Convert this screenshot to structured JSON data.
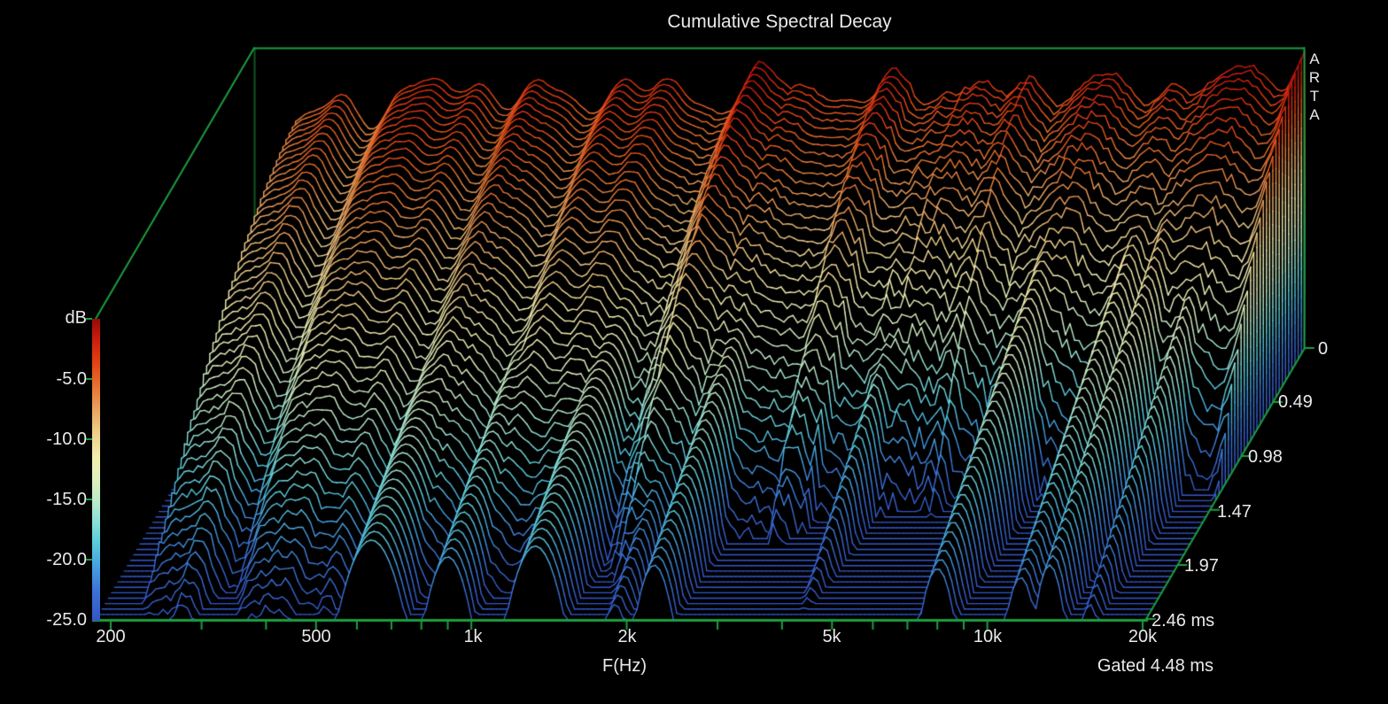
{
  "title": "Cumulative Spectral Decay",
  "watermark_letters": [
    "A",
    "R",
    "T",
    "A"
  ],
  "footer_note": "Gated 4.48 ms",
  "colors": {
    "background": "#000000",
    "plot_fill": "#000000",
    "axis_green": "#1c9e3e",
    "axis_green_dim": "#0d5a23",
    "text": "#e9e9e9"
  },
  "axes": {
    "x": {
      "label": "F(Hz)",
      "scale": "log",
      "major_ticks": [
        "200",
        "500",
        "1k",
        "2k",
        "5k",
        "10k",
        "20k"
      ],
      "major_tick_hz": [
        200,
        500,
        1000,
        2000,
        5000,
        10000,
        20000
      ],
      "minor_tick_hz": [
        300,
        400,
        600,
        700,
        800,
        900,
        3000,
        4000,
        6000,
        7000,
        8000,
        9000
      ],
      "view_range_hz": [
        187,
        20300
      ]
    },
    "y": {
      "label": "dB",
      "tick_labels": [
        "dB",
        "-5.0",
        "-10.0",
        "-15.0",
        "-20.0",
        "-25.0"
      ],
      "range_db": [
        -25,
        0
      ]
    },
    "z": {
      "tick_labels": [
        "0",
        "0.49",
        "0.98",
        "1.47",
        "1.97",
        "2.46 ms"
      ],
      "tick_ms": [
        0,
        0.49,
        0.98,
        1.47,
        1.97,
        2.46
      ],
      "max_ms": 2.46
    }
  },
  "chart_data": {
    "type": "waterfall",
    "subtype": "cumulative-spectral-decay",
    "time_slices": 51,
    "time_max_ms": 2.46,
    "gate_ms": 4.48,
    "valid_freq_min_hz": 223,
    "db_floor": -25,
    "initial_response_db": [
      [
        223,
        -6.3
      ],
      [
        250,
        -5.6
      ],
      [
        300,
        -4.9
      ],
      [
        400,
        -3.6
      ],
      [
        500,
        -3.1
      ],
      [
        600,
        -3.7
      ],
      [
        700,
        -4.5
      ],
      [
        800,
        -4.2
      ],
      [
        900,
        -3.5
      ],
      [
        1000,
        -3.1
      ],
      [
        1150,
        -3.6
      ],
      [
        1300,
        -4.4
      ],
      [
        1500,
        -4.0
      ],
      [
        1700,
        -3.2
      ],
      [
        2000,
        -2.9
      ],
      [
        2400,
        -3.5
      ],
      [
        2800,
        -4.1
      ],
      [
        3300,
        -3.7
      ],
      [
        3900,
        -3.0
      ],
      [
        4500,
        -3.4
      ],
      [
        5200,
        -4.0
      ],
      [
        6000,
        -3.4
      ],
      [
        7000,
        -2.9
      ],
      [
        8000,
        -3.2
      ],
      [
        9000,
        -3.9
      ],
      [
        10500,
        -3.5
      ],
      [
        12000,
        -2.9
      ],
      [
        13500,
        -3.3
      ],
      [
        15000,
        -2.6
      ],
      [
        17000,
        -2.0
      ],
      [
        19000,
        -1.4
      ],
      [
        20300,
        -1.0
      ]
    ],
    "decay_rate_db": [
      [
        223,
        4.4
      ],
      [
        500,
        4.9
      ],
      [
        1000,
        5.4
      ],
      [
        2000,
        6.8
      ],
      [
        3200,
        8.6
      ],
      [
        5000,
        11.0
      ],
      [
        8000,
        12.5
      ],
      [
        12000,
        13.5
      ],
      [
        20300,
        14.5
      ]
    ],
    "decay_time_exponent": 1.7,
    "resonances": [
      {
        "hz": 640,
        "level_db": -4.6,
        "decay_db_per_ms": 5.6,
        "logwidth": 0.045
      },
      {
        "hz": 900,
        "level_db": -5.0,
        "decay_db_per_ms": 6.0,
        "logwidth": 0.035
      },
      {
        "hz": 1330,
        "level_db": -4.6,
        "decay_db_per_ms": 5.8,
        "logwidth": 0.04
      },
      {
        "hz": 1900,
        "level_db": -6.5,
        "decay_db_per_ms": 7.0,
        "logwidth": 0.025
      },
      {
        "hz": 2260,
        "level_db": -5.2,
        "decay_db_per_ms": 6.2,
        "logwidth": 0.03
      },
      {
        "hz": 4300,
        "level_db": -6.0,
        "decay_db_per_ms": 8.0,
        "logwidth": 0.022
      },
      {
        "hz": 8000,
        "level_db": -4.5,
        "decay_db_per_ms": 6.6,
        "logwidth": 0.028
      },
      {
        "hz": 11600,
        "level_db": -4.5,
        "decay_db_per_ms": 6.9,
        "logwidth": 0.026
      },
      {
        "hz": 13200,
        "level_db": -4.2,
        "decay_db_per_ms": 6.6,
        "logwidth": 0.024
      },
      {
        "hz": 15800,
        "level_db": -5.0,
        "decay_db_per_ms": 7.6,
        "logwidth": 0.02
      }
    ],
    "colormap_level_to_rgb": [
      [
        0.0,
        52,
        86,
        198
      ],
      [
        0.1,
        60,
        115,
        215
      ],
      [
        0.18,
        70,
        160,
        225
      ],
      [
        0.26,
        90,
        205,
        220
      ],
      [
        0.33,
        140,
        225,
        215
      ],
      [
        0.4,
        190,
        235,
        200
      ],
      [
        0.47,
        225,
        240,
        190
      ],
      [
        0.54,
        242,
        238,
        175
      ],
      [
        0.62,
        240,
        208,
        140
      ],
      [
        0.7,
        233,
        162,
        95
      ],
      [
        0.78,
        230,
        112,
        45
      ],
      [
        0.86,
        226,
        62,
        20
      ],
      [
        0.94,
        200,
        25,
        12
      ],
      [
        1.0,
        145,
        12,
        8
      ]
    ]
  }
}
